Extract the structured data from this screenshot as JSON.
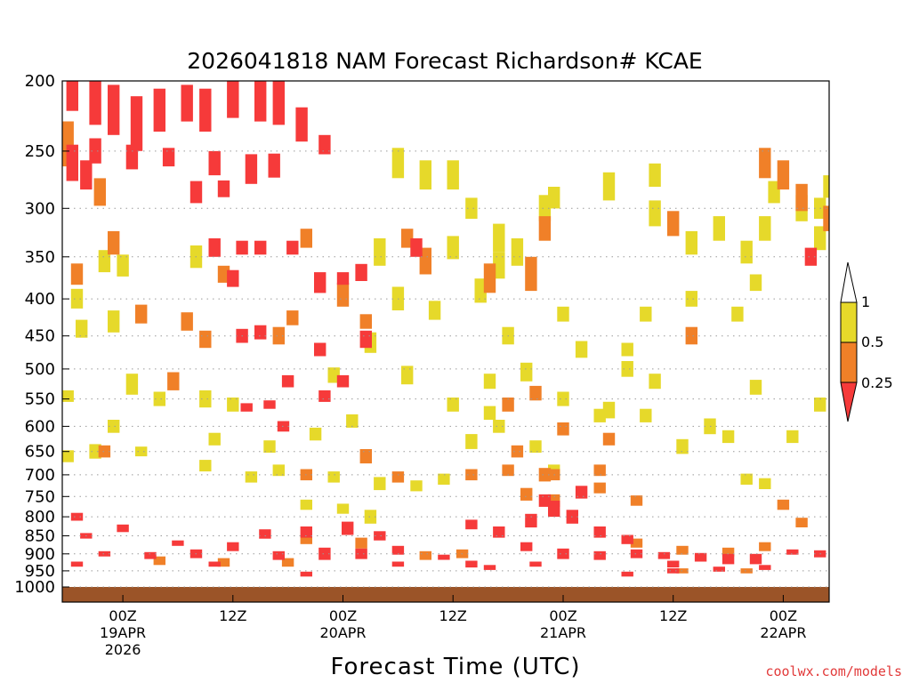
{
  "chart_data": {
    "type": "heatmap",
    "title": "2026041818 NAM Forecast Richardson# KCAE",
    "xlabel": "Forecast Time (UTC)",
    "ylabel": "",
    "y_ticks": [
      "200",
      "250",
      "300",
      "350",
      "400",
      "450",
      "500",
      "550",
      "600",
      "650",
      "700",
      "750",
      "800",
      "850",
      "900",
      "950",
      "1000"
    ],
    "y_range_hpa": [
      200,
      1000
    ],
    "x_range_hours": [
      -6.6,
      77
    ],
    "x_ticks": [
      {
        "hour": 0,
        "lines": [
          "00Z",
          "19APR",
          "2026"
        ]
      },
      {
        "hour": 12,
        "lines": [
          "12Z"
        ]
      },
      {
        "hour": 24,
        "lines": [
          "00Z",
          "20APR"
        ]
      },
      {
        "hour": 36,
        "lines": [
          "12Z"
        ]
      },
      {
        "hour": 48,
        "lines": [
          "00Z",
          "21APR"
        ]
      },
      {
        "hour": 60,
        "lines": [
          "12Z"
        ]
      },
      {
        "hour": 72,
        "lines": [
          "00Z",
          "22APR"
        ]
      }
    ],
    "colorbar": {
      "labels": [
        "1",
        "0.5",
        "0.25"
      ],
      "colors": {
        "low": "#f63a3a",
        "mid": "#f08028",
        "high": "#e6d92a",
        "ground": "#9b5428"
      }
    },
    "series": [
      {
        "name": "Ri < 0.25",
        "color": "#f63a3a",
        "cells": [
          [
            -5.5,
            210,
            20
          ],
          [
            -3,
            215,
            30
          ],
          [
            -1,
            220,
            35
          ],
          [
            1.5,
            230,
            40
          ],
          [
            4,
            220,
            30
          ],
          [
            7,
            215,
            25
          ],
          [
            9,
            220,
            30
          ],
          [
            12,
            210,
            30
          ],
          [
            15,
            210,
            35
          ],
          [
            17,
            215,
            30
          ],
          [
            19.5,
            230,
            25
          ],
          [
            -5.5,
            260,
            30
          ],
          [
            -3,
            250,
            20
          ],
          [
            -4,
            270,
            25
          ],
          [
            1,
            255,
            20
          ],
          [
            5,
            255,
            15
          ],
          [
            10,
            260,
            20
          ],
          [
            14,
            265,
            25
          ],
          [
            16.5,
            262,
            20
          ],
          [
            22,
            245,
            15
          ],
          [
            8,
            285,
            20
          ],
          [
            11,
            282,
            15
          ],
          [
            10,
            340,
            20
          ],
          [
            13,
            340,
            15
          ],
          [
            15,
            340,
            15
          ],
          [
            12,
            375,
            20
          ],
          [
            21.5,
            380,
            25
          ],
          [
            24,
            375,
            15
          ],
          [
            26,
            368,
            20
          ],
          [
            18.5,
            340,
            15
          ],
          [
            32,
            340,
            20
          ],
          [
            13,
            450,
            20
          ],
          [
            15,
            445,
            20
          ],
          [
            21.5,
            470,
            20
          ],
          [
            26.5,
            455,
            25
          ],
          [
            18,
            520,
            20
          ],
          [
            22,
            545,
            20
          ],
          [
            13.5,
            565,
            15
          ],
          [
            16,
            560,
            15
          ],
          [
            24,
            520,
            20
          ],
          [
            17.5,
            600,
            20
          ],
          [
            15.5,
            845,
            25
          ],
          [
            20,
            840,
            30
          ],
          [
            24.5,
            830,
            35
          ],
          [
            28,
            850,
            25
          ],
          [
            12,
            880,
            25
          ],
          [
            22,
            900,
            35
          ],
          [
            26,
            900,
            30
          ],
          [
            30,
            890,
            25
          ],
          [
            8,
            900,
            25
          ],
          [
            3,
            905,
            20
          ],
          [
            17,
            905,
            25
          ],
          [
            38,
            820,
            25
          ],
          [
            41,
            840,
            30
          ],
          [
            44.5,
            810,
            35
          ],
          [
            47,
            780,
            40
          ],
          [
            49,
            800,
            35
          ],
          [
            52,
            840,
            30
          ],
          [
            55,
            860,
            25
          ],
          [
            44,
            880,
            25
          ],
          [
            48,
            900,
            30
          ],
          [
            52,
            905,
            25
          ],
          [
            56,
            900,
            25
          ],
          [
            59,
            905,
            20
          ],
          [
            63,
            910,
            25
          ],
          [
            66,
            915,
            30
          ],
          [
            69,
            915,
            30
          ],
          [
            60,
            930,
            20
          ],
          [
            50,
            740,
            30
          ],
          [
            46,
            760,
            30
          ],
          [
            -5,
            800,
            20
          ],
          [
            0,
            830,
            20
          ],
          [
            -4,
            850,
            15
          ],
          [
            6,
            870,
            15
          ],
          [
            -2,
            900,
            15
          ],
          [
            35,
            910,
            15
          ],
          [
            38,
            930,
            20
          ],
          [
            73,
            895,
            15
          ],
          [
            76,
            900,
            20
          ],
          [
            30,
            930,
            15
          ],
          [
            40,
            940,
            15
          ],
          [
            -5,
            930,
            15
          ],
          [
            10,
            930,
            15
          ],
          [
            45,
            930,
            15
          ],
          [
            60,
            950,
            15
          ],
          [
            65,
            945,
            15
          ],
          [
            70,
            940,
            15
          ],
          [
            20,
            960,
            15
          ],
          [
            55,
            960,
            15
          ],
          [
            75,
            350,
            20
          ]
        ]
      },
      {
        "name": "0.25 ≤ Ri < 0.5",
        "color": "#f08028",
        "cells": [
          [
            -6,
            245,
            35
          ],
          [
            -2.5,
            285,
            25
          ],
          [
            -5,
            370,
            25
          ],
          [
            -1,
            335,
            25
          ],
          [
            20,
            330,
            20
          ],
          [
            11,
            370,
            20
          ],
          [
            2,
            420,
            25
          ],
          [
            7,
            430,
            25
          ],
          [
            9,
            455,
            25
          ],
          [
            17,
            450,
            25
          ],
          [
            18.5,
            425,
            20
          ],
          [
            24,
            395,
            30
          ],
          [
            26.5,
            430,
            20
          ],
          [
            33,
            355,
            30
          ],
          [
            31,
            330,
            20
          ],
          [
            40,
            375,
            35
          ],
          [
            44.5,
            370,
            40
          ],
          [
            46,
            320,
            25
          ],
          [
            5.5,
            520,
            30
          ],
          [
            -2,
            650,
            25
          ],
          [
            26.5,
            660,
            30
          ],
          [
            20,
            700,
            25
          ],
          [
            30,
            705,
            25
          ],
          [
            38,
            700,
            25
          ],
          [
            42,
            690,
            25
          ],
          [
            47,
            700,
            25
          ],
          [
            44,
            745,
            30
          ],
          [
            47,
            760,
            30
          ],
          [
            52,
            730,
            25
          ],
          [
            56,
            760,
            25
          ],
          [
            20,
            860,
            25
          ],
          [
            26,
            870,
            30
          ],
          [
            56,
            870,
            25
          ],
          [
            61,
            890,
            25
          ],
          [
            66,
            895,
            25
          ],
          [
            70,
            880,
            25
          ],
          [
            4,
            920,
            25
          ],
          [
            11,
            925,
            25
          ],
          [
            18,
            925,
            25
          ],
          [
            33,
            905,
            25
          ],
          [
            37,
            900,
            25
          ],
          [
            45,
            540,
            25
          ],
          [
            42,
            560,
            25
          ],
          [
            48,
            605,
            25
          ],
          [
            52,
            690,
            25
          ],
          [
            53,
            625,
            25
          ],
          [
            43,
            650,
            25
          ],
          [
            46,
            700,
            30
          ],
          [
            60,
            315,
            25
          ],
          [
            62,
            450,
            25
          ],
          [
            70,
            260,
            25
          ],
          [
            72,
            270,
            25
          ],
          [
            74,
            290,
            25
          ],
          [
            77,
            310,
            25
          ],
          [
            74,
            815,
            25
          ],
          [
            72,
            770,
            25
          ],
          [
            61,
            950,
            15
          ],
          [
            68,
            950,
            15
          ]
        ]
      },
      {
        "name": "0.5 ≤ Ri < 1",
        "color": "#e6d92a",
        "cells": [
          [
            -5,
            400,
            25
          ],
          [
            -1,
            430,
            30
          ],
          [
            -4.5,
            440,
            25
          ],
          [
            -3,
            650,
            30
          ],
          [
            1,
            525,
            35
          ],
          [
            4,
            550,
            25
          ],
          [
            9,
            550,
            30
          ],
          [
            12,
            560,
            25
          ],
          [
            -1,
            600,
            25
          ],
          [
            -6,
            660,
            25
          ],
          [
            2,
            650,
            20
          ],
          [
            9,
            680,
            25
          ],
          [
            14,
            705,
            25
          ],
          [
            17,
            690,
            25
          ],
          [
            23,
            705,
            25
          ],
          [
            28,
            720,
            30
          ],
          [
            32,
            725,
            25
          ],
          [
            35,
            710,
            25
          ],
          [
            27,
            800,
            35
          ],
          [
            24,
            780,
            25
          ],
          [
            20,
            770,
            25
          ],
          [
            28,
            345,
            30
          ],
          [
            30,
            400,
            30
          ],
          [
            34,
            415,
            25
          ],
          [
            39,
            390,
            30
          ],
          [
            41,
            360,
            30
          ],
          [
            43,
            345,
            30
          ],
          [
            41,
            330,
            30
          ],
          [
            36,
            340,
            25
          ],
          [
            30,
            260,
            25
          ],
          [
            33,
            270,
            25
          ],
          [
            36,
            270,
            25
          ],
          [
            38,
            300,
            20
          ],
          [
            27,
            460,
            30
          ],
          [
            23,
            510,
            25
          ],
          [
            31,
            510,
            30
          ],
          [
            40,
            520,
            25
          ],
          [
            42,
            450,
            25
          ],
          [
            44,
            505,
            30
          ],
          [
            36,
            560,
            25
          ],
          [
            38,
            630,
            30
          ],
          [
            41,
            600,
            25
          ],
          [
            47,
            690,
            25
          ],
          [
            45,
            640,
            25
          ],
          [
            53,
            570,
            30
          ],
          [
            55,
            500,
            25
          ],
          [
            58,
            520,
            25
          ],
          [
            61,
            640,
            30
          ],
          [
            64,
            600,
            30
          ],
          [
            66,
            620,
            25
          ],
          [
            68,
            710,
            25
          ],
          [
            73,
            620,
            25
          ],
          [
            76,
            560,
            25
          ],
          [
            69,
            530,
            25
          ],
          [
            70,
            720,
            25
          ],
          [
            53,
            280,
            25
          ],
          [
            58,
            270,
            20
          ],
          [
            58,
            305,
            25
          ],
          [
            62,
            335,
            25
          ],
          [
            65,
            320,
            25
          ],
          [
            68,
            345,
            25
          ],
          [
            70,
            320,
            25
          ],
          [
            71,
            285,
            20
          ],
          [
            74,
            300,
            25
          ],
          [
            76,
            330,
            25
          ],
          [
            77,
            280,
            20
          ],
          [
            46,
            300,
            25
          ],
          [
            47,
            290,
            20
          ],
          [
            40,
            575,
            25
          ],
          [
            48,
            420,
            20
          ],
          [
            50,
            470,
            25
          ],
          [
            55,
            470,
            20
          ],
          [
            57,
            420,
            20
          ],
          [
            62,
            400,
            20
          ],
          [
            67,
            420,
            20
          ],
          [
            69,
            380,
            20
          ],
          [
            76,
            300,
            20
          ],
          [
            -2,
            355,
            25
          ],
          [
            0,
            360,
            25
          ],
          [
            8,
            350,
            25
          ],
          [
            -6,
            545,
            20
          ],
          [
            10,
            625,
            25
          ],
          [
            16,
            640,
            25
          ],
          [
            21,
            615,
            25
          ],
          [
            25,
            590,
            25
          ],
          [
            48,
            550,
            25
          ],
          [
            52,
            580,
            25
          ],
          [
            57,
            580,
            25
          ]
        ]
      }
    ]
  },
  "credit": "coolwx.com/models"
}
